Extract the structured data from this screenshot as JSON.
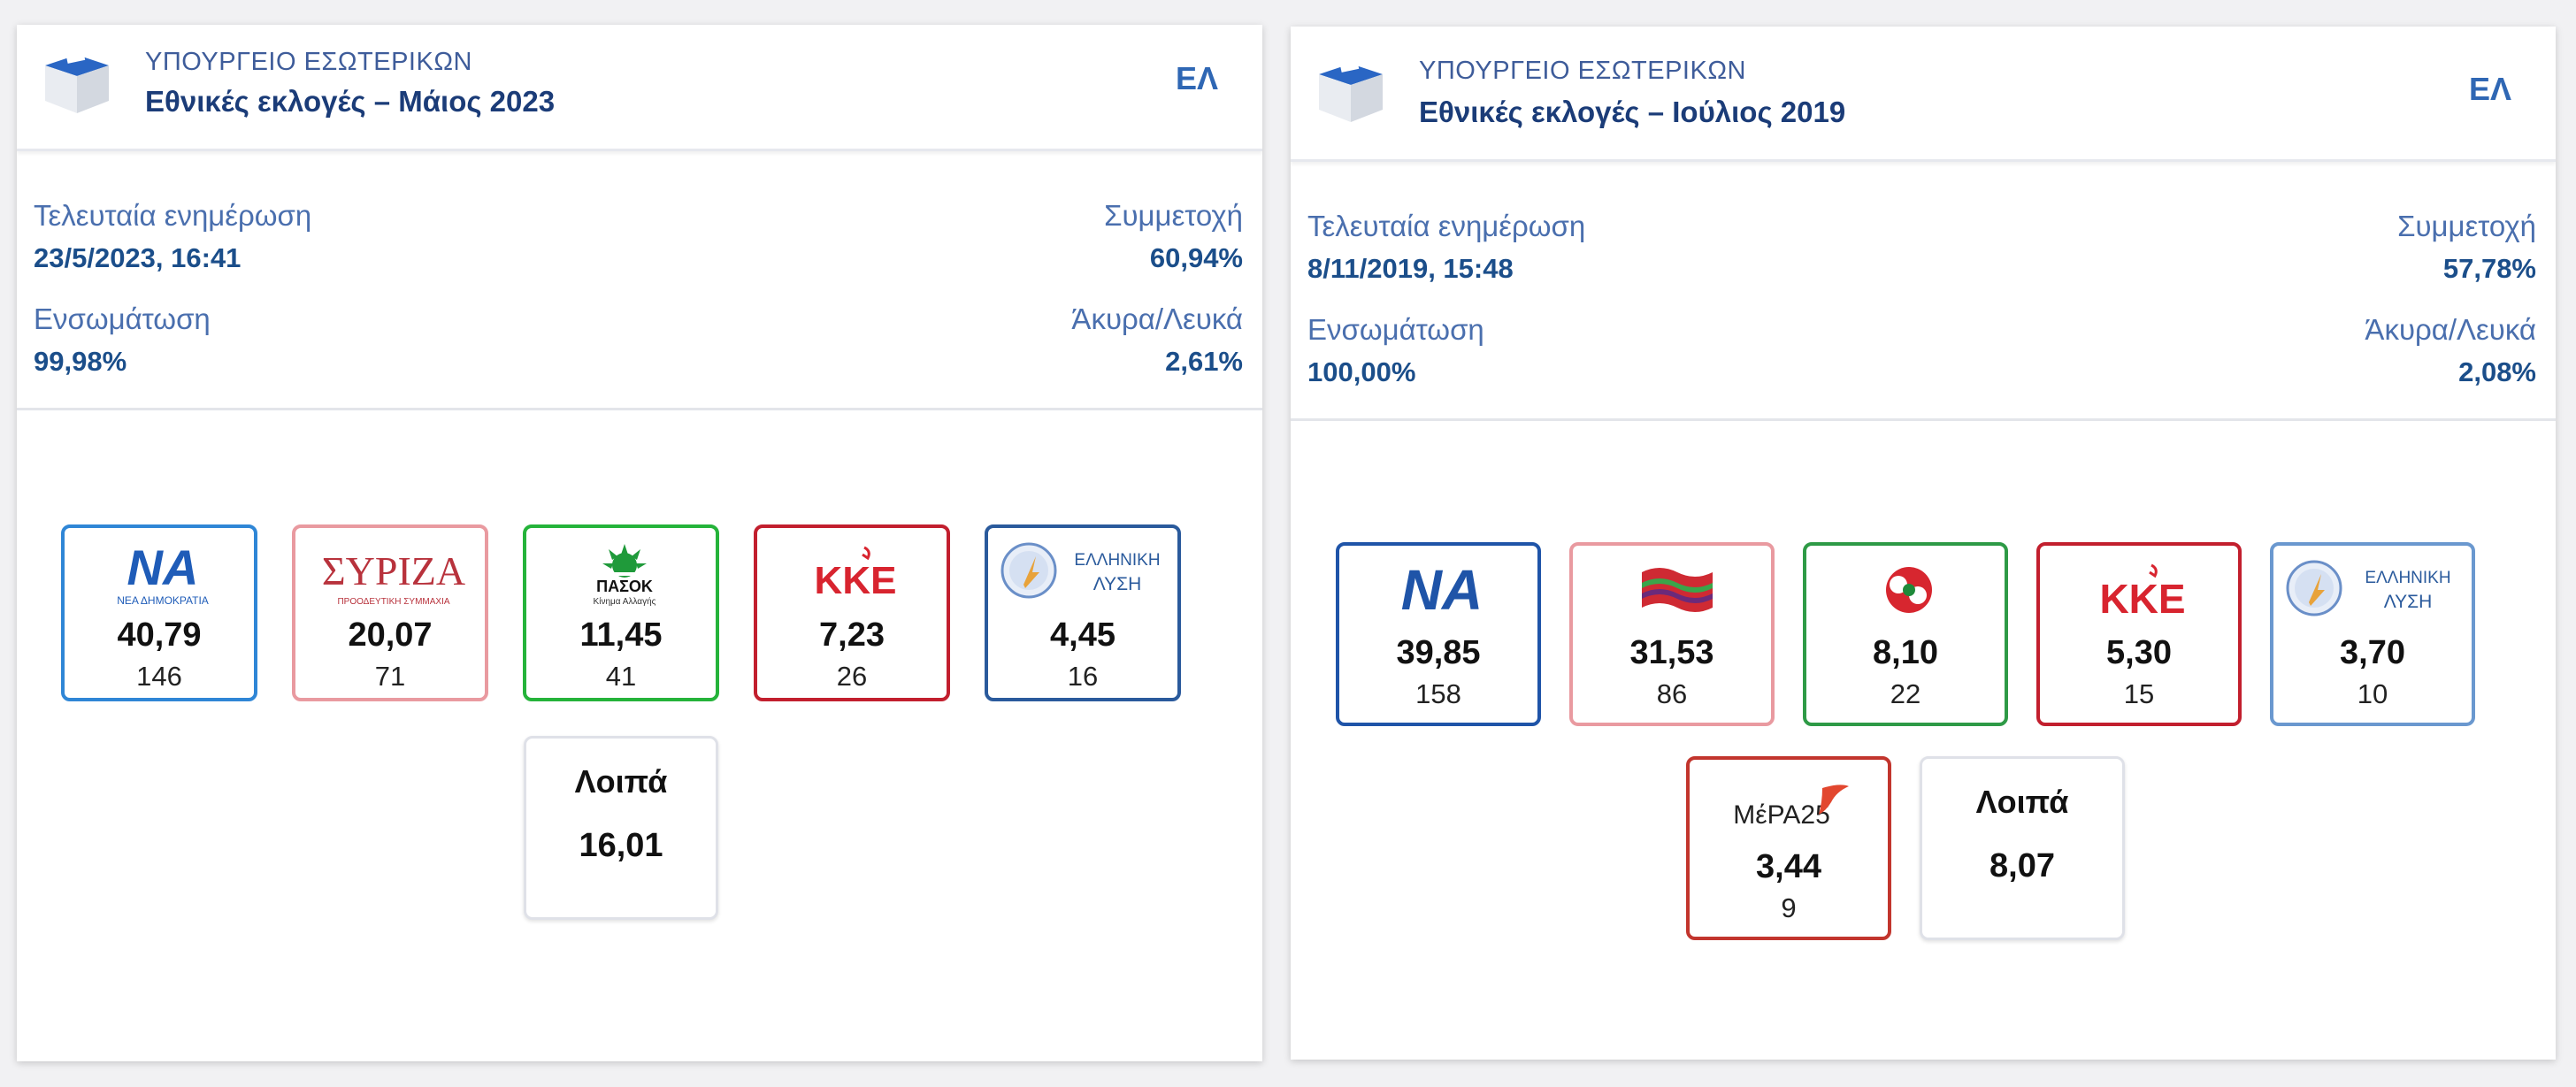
{
  "left": {
    "ministry": "ΥΠΟΥΡΓΕΙΟ ΕΣΩΤΕΡΙΚΩΝ",
    "title": "Εθνικές εκλογές – Μάιος 2023",
    "lang": "ΕΛ",
    "updated_label": "Τελευταία ενημέρωση",
    "updated_value": "23/5/2023, 16:41",
    "turnout_label": "Συμμετοχή",
    "turnout_value": "60,94%",
    "integration_label": "Ενσωμάτωση",
    "integration_value": "99,98%",
    "invalid_label": "Άκυρα/Λευκά",
    "invalid_value": "2,61%",
    "parties": [
      {
        "logo": "nd-logo",
        "logo_text": "ΝΑ",
        "logo_sub": "ΝΕΑ ΔΗΜΟΚΡΑΤΙΑ",
        "percent": "40,79",
        "seats": "146",
        "color": "#2f86d6"
      },
      {
        "logo": "syriza-logo",
        "logo_text": "ΣΥΡΙΖΑ",
        "logo_sub": "ΠΡΟΟΔΕΥΤΙΚΗ ΣΥΜΜΑΧΙΑ",
        "percent": "20,07",
        "seats": "71",
        "color": "#e99aa0"
      },
      {
        "logo": "pasok-logo",
        "logo_text": "ΠΑΣΟΚ",
        "logo_sub": "Κίνημα Αλλαγής",
        "percent": "11,45",
        "seats": "41",
        "color": "#25b33a"
      },
      {
        "logo": "kke-logo",
        "logo_text": "ΚΚΕ",
        "percent": "7,23",
        "seats": "26",
        "color": "#c21f2e"
      },
      {
        "logo": "elliniki-lysi-logo",
        "logo_text": "ΕΛΛΗΝΙΚΗ",
        "logo_text2": "ΛΥΣΗ",
        "percent": "4,45",
        "seats": "16",
        "color": "#2a5a9c"
      }
    ],
    "others": {
      "label": "Λοιπά",
      "percent": "16,01"
    }
  },
  "right": {
    "ministry": "ΥΠΟΥΡΓΕΙΟ ΕΣΩΤΕΡΙΚΩΝ",
    "title": "Εθνικές εκλογές – Ιούλιος 2019",
    "lang": "ΕΛ",
    "updated_label": "Τελευταία ενημέρωση",
    "updated_value": "8/11/2019, 15:48",
    "turnout_label": "Συμμετοχή",
    "turnout_value": "57,78%",
    "integration_label": "Ενσωμάτωση",
    "integration_value": "100,00%",
    "invalid_label": "Άκυρα/Λευκά",
    "invalid_value": "2,08%",
    "parties": [
      {
        "logo": "nd-logo",
        "logo_text": "ΝΑ",
        "percent": "39,85",
        "seats": "158",
        "color": "#1f54a8"
      },
      {
        "logo": "syriza-flag-logo",
        "percent": "31,53",
        "seats": "86",
        "color": "#e99aa0"
      },
      {
        "logo": "kinal-rose-logo",
        "percent": "8,10",
        "seats": "22",
        "color": "#2e9a46"
      },
      {
        "logo": "kke-logo",
        "logo_text": "ΚΚΕ",
        "percent": "5,30",
        "seats": "15",
        "color": "#c21f2e"
      },
      {
        "logo": "elliniki-lysi-logo",
        "logo_text": "ΕΛΛΗΝΙΚΗ",
        "logo_text2": "ΛΥΣΗ",
        "percent": "3,70",
        "seats": "10",
        "color": "#6a98cf"
      },
      {
        "logo": "mera25-logo",
        "logo_text": "ΜέΡΑ25",
        "percent": "3,44",
        "seats": "9",
        "color": "#c2352d"
      }
    ],
    "others": {
      "label": "Λοιπά",
      "percent": "8,07"
    }
  }
}
